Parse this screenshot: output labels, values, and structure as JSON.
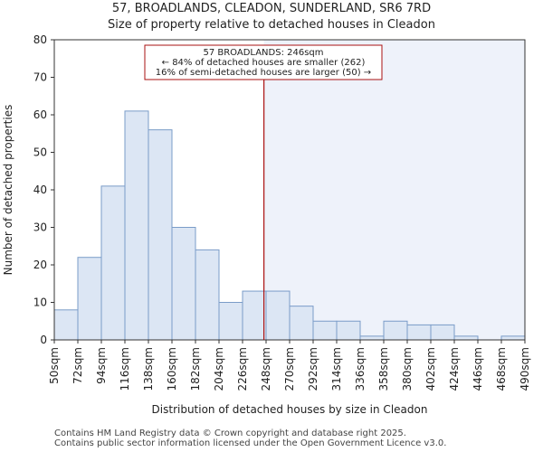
{
  "title_line1": "57, BROADLANDS, CLEADON, SUNDERLAND, SR6 7RD",
  "title_line2": "Size of property relative to detached houses in Cleadon",
  "footer_line1": "Contains HM Land Registry data © Crown copyright and database right 2025.",
  "footer_line2": "Contains public sector information licensed under the Open Government Licence v3.0.",
  "chart_data": {
    "type": "bar",
    "title": "Size of property relative to detached houses in Cleadon",
    "xlabel": "Distribution of detached houses by size in Cleadon",
    "ylabel": "Number of detached properties",
    "ylim": [
      0,
      80
    ],
    "yticks": [
      0,
      10,
      20,
      30,
      40,
      50,
      60,
      70,
      80
    ],
    "bin_edges": [
      50,
      72,
      94,
      116,
      138,
      160,
      182,
      204,
      226,
      248,
      270,
      292,
      314,
      336,
      358,
      380,
      402,
      424,
      446,
      468,
      490
    ],
    "tick_labels": [
      "50sqm",
      "72sqm",
      "94sqm",
      "116sqm",
      "138sqm",
      "160sqm",
      "182sqm",
      "204sqm",
      "226sqm",
      "248sqm",
      "270sqm",
      "292sqm",
      "314sqm",
      "336sqm",
      "358sqm",
      "380sqm",
      "402sqm",
      "424sqm",
      "446sqm",
      "468sqm",
      "490sqm"
    ],
    "values": [
      8,
      22,
      41,
      61,
      56,
      30,
      24,
      10,
      13,
      13,
      9,
      5,
      5,
      1,
      5,
      4,
      4,
      1,
      0,
      1
    ],
    "marker_value": 246,
    "annotation": {
      "line1": "57 BROADLANDS: 246sqm",
      "line2": "← 84% of detached houses are smaller (262)",
      "line3": "16% of semi-detached houses are larger (50) →"
    },
    "colors": {
      "bar_fill": "#dce6f4",
      "bar_stroke": "#7a9cc8",
      "marker": "#aa1111",
      "shade": "#eef2fa",
      "grid": "#cccccc"
    }
  }
}
